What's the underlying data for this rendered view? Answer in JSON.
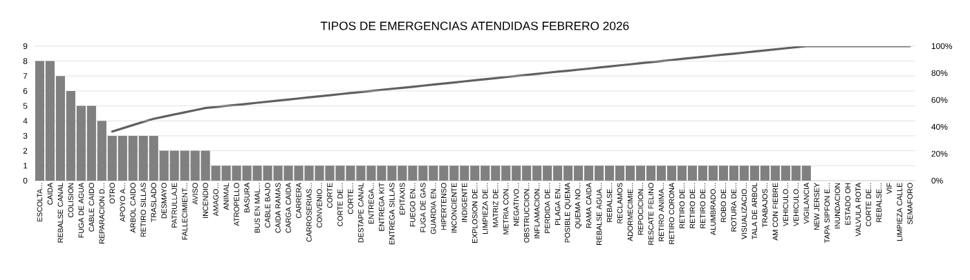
{
  "chart_data": {
    "type": "bar",
    "title": "TIPOS DE EMERGENCIAS ATENDIDAS FEBRERO 2026",
    "categories": [
      "ESCOLTA...",
      "CAIDA",
      "REBALSE CANAL",
      "COLISION",
      "FUGA DE AGUA",
      "CABLE CAIDO",
      "REPARACION D...",
      "OTRO",
      "APOYO A...",
      "ARBOL CAIDO",
      "RETIRO SILLAS",
      "TRASLADO",
      "DESMAYO",
      "PATRULLAJE",
      "FALLECIMIENT...",
      "AVISO",
      "INCENDIO",
      "AMAGO...",
      "ANIMAL",
      "ATROPELLO",
      "BASURA",
      "BUS EN MAL...",
      "CABLE BAJO",
      "CAIDA RAMAS",
      "CARGA CAIDA",
      "CARRERA",
      "CARROSERIAS...",
      "CONVENIO...",
      "CORTE",
      "CORTE DE...",
      "CORTE...",
      "DESTAPE CANAL",
      "ENTREGA...",
      "ENTREGA KIT",
      "ENTREGA SILLAS",
      "EPITAXIS",
      "FUEGO EN...",
      "FUGA DE GAS",
      "GUARDIA EN...",
      "HIPERTENSO",
      "INCONCIENTE",
      "INDIGENTE",
      "EXPLOSION DE...",
      "LIMPIEZA DE...",
      "MATRIZ DE...",
      "METRIA CON...",
      "NEGATIVO...",
      "OBSTRUCCION...",
      "INFLAMACION...",
      "PERDIDA DE...",
      "PLAGA EN...",
      "POSIBLE QUEMA",
      "QUEMA NO...",
      "RAMA CAIDA",
      "REBALSE AGUA...",
      "REBALSE...",
      "RECLAMOS",
      "ADORMECIMIE...",
      "REPOCICION...",
      "RESCATE FELINO",
      "RETIRO ANIMA...",
      "RETIRO CORONA",
      "RETIRO DE...",
      "RETIRO DE...",
      "RETIRO DE...",
      "ALUMBRADO...",
      "ROBO DE...",
      "ROTURA DE...",
      "VISUALIZACIO...",
      "TALA DE ARBOL",
      "TRABAJOS...",
      "AM CON FIEBRE",
      "VEHICULO...",
      "VEHICULO...",
      "VIGILANCIA",
      "NEW JERSEY",
      "TAPA SIPFON E...",
      "INUNDACION",
      "ESTADO OH",
      "VALVULA ROTA",
      "CORTE DE...",
      "REBALSE...",
      "VIF",
      "LIMPIEZA CALLE",
      "SEMAFORO"
    ],
    "series": [
      {
        "color": "#808080",
        "values": [
          8,
          8,
          7,
          6,
          5,
          5,
          4,
          3,
          3,
          3,
          3,
          3,
          2,
          2,
          2,
          2,
          2,
          1,
          1,
          1,
          1,
          1,
          1,
          1,
          1,
          1,
          1,
          1,
          1,
          1,
          1,
          1,
          1,
          1,
          1,
          1,
          1,
          1,
          1,
          1,
          1,
          1,
          1,
          1,
          1,
          1,
          1,
          1,
          1,
          1,
          1,
          1,
          1,
          1,
          1,
          1,
          1,
          1,
          1,
          1,
          1,
          1,
          1,
          1,
          1,
          1,
          1,
          1,
          1,
          1,
          1,
          1,
          1,
          1,
          1,
          0,
          0,
          0,
          0,
          0,
          0,
          0,
          0,
          0,
          0
        ]
      },
      {
        "type": "line",
        "axis": "y2",
        "color": "#606060",
        "values": [
          null,
          null,
          null,
          null,
          null,
          null,
          null,
          36.5,
          38.9,
          41.3,
          43.7,
          46.0,
          47.6,
          49.2,
          50.8,
          52.4,
          54.0,
          54.8,
          55.6,
          56.3,
          57.1,
          57.9,
          58.7,
          59.5,
          60.3,
          61.1,
          61.9,
          62.7,
          63.5,
          64.3,
          65.1,
          65.9,
          66.7,
          67.5,
          68.3,
          69.0,
          69.8,
          70.6,
          71.4,
          72.2,
          73.0,
          73.8,
          74.6,
          75.4,
          76.2,
          77.0,
          77.8,
          78.6,
          79.4,
          80.2,
          81.0,
          81.7,
          82.5,
          83.3,
          84.1,
          84.9,
          85.7,
          86.5,
          87.3,
          88.1,
          88.9,
          89.7,
          90.5,
          91.3,
          92.1,
          92.9,
          93.7,
          94.4,
          95.2,
          96.0,
          96.8,
          97.6,
          98.4,
          99.2,
          100,
          100,
          100,
          100,
          100,
          100,
          100,
          100,
          100,
          100,
          100
        ]
      }
    ],
    "ylim": [
      0,
      9
    ],
    "yticks": [
      0,
      1,
      2,
      3,
      4,
      5,
      6,
      7,
      8,
      9
    ],
    "y2lim": [
      0,
      100
    ],
    "y2ticks": [
      {
        "value": 0,
        "label": "0%"
      },
      {
        "value": 20,
        "label": "20%"
      },
      {
        "value": 40,
        "label": "40%"
      },
      {
        "value": 60,
        "label": "60%"
      },
      {
        "value": 80,
        "label": "80%"
      },
      {
        "value": 100,
        "label": "100%"
      }
    ],
    "grid": "y"
  }
}
